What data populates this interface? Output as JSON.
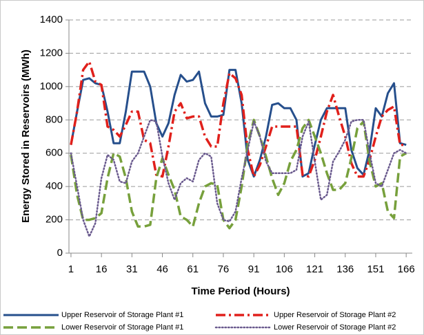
{
  "chart_data": {
    "type": "line",
    "x_label": "Time Period (Hours)",
    "y_label": "Energy Stored in Reservoirs (MWh)",
    "x": [
      1,
      4,
      7,
      10,
      13,
      16,
      19,
      22,
      25,
      28,
      31,
      34,
      37,
      40,
      43,
      46,
      49,
      52,
      55,
      58,
      61,
      64,
      67,
      70,
      73,
      76,
      79,
      82,
      85,
      88,
      91,
      94,
      97,
      100,
      103,
      106,
      109,
      112,
      115,
      118,
      121,
      124,
      127,
      130,
      133,
      136,
      139,
      142,
      145,
      148,
      151,
      154,
      157,
      160,
      163,
      166
    ],
    "series": [
      {
        "name": "Upper Reservoir of Storage Plant #1",
        "color": "#264f8c",
        "values": [
          650,
          850,
          1040,
          1050,
          1020,
          1010,
          850,
          660,
          660,
          850,
          1090,
          1090,
          1090,
          1000,
          780,
          700,
          780,
          950,
          1070,
          1030,
          1040,
          1090,
          900,
          820,
          820,
          830,
          1100,
          1100,
          900,
          560,
          460,
          560,
          700,
          890,
          900,
          870,
          870,
          800,
          460,
          480,
          650,
          800,
          870,
          870,
          870,
          870,
          620,
          510,
          470,
          620,
          870,
          820,
          960,
          1020,
          660,
          650
        ]
      },
      {
        "name": "Upper Reservoir of Storage Plant #2",
        "color": "#e0201b",
        "values": [
          650,
          850,
          1100,
          1150,
          1030,
          1010,
          760,
          740,
          700,
          770,
          850,
          850,
          680,
          660,
          470,
          460,
          640,
          850,
          900,
          810,
          820,
          820,
          700,
          640,
          640,
          900,
          1080,
          1050,
          950,
          620,
          460,
          530,
          640,
          760,
          760,
          760,
          760,
          760,
          470,
          460,
          560,
          700,
          850,
          950,
          820,
          700,
          540,
          460,
          460,
          560,
          700,
          820,
          860,
          880,
          650,
          650
        ]
      },
      {
        "name": "Lower Reservoir of Storage Plant #1",
        "color": "#77a03c",
        "values": [
          590,
          350,
          200,
          200,
          210,
          240,
          450,
          600,
          580,
          450,
          250,
          160,
          160,
          170,
          450,
          570,
          470,
          380,
          220,
          200,
          160,
          300,
          400,
          420,
          410,
          200,
          150,
          200,
          400,
          650,
          800,
          700,
          580,
          450,
          350,
          420,
          550,
          620,
          750,
          800,
          700,
          600,
          480,
          380,
          380,
          420,
          570,
          750,
          790,
          550,
          400,
          420,
          250,
          210,
          580,
          600
        ]
      },
      {
        "name": "Lower Reservoir of Storage Plant #2",
        "color": "#6a5a8e",
        "values": [
          600,
          400,
          200,
          100,
          180,
          450,
          590,
          560,
          430,
          420,
          550,
          600,
          700,
          800,
          790,
          580,
          420,
          320,
          420,
          450,
          430,
          560,
          600,
          580,
          300,
          200,
          190,
          250,
          450,
          620,
          790,
          700,
          550,
          480,
          480,
          480,
          480,
          500,
          700,
          790,
          550,
          320,
          350,
          550,
          610,
          680,
          790,
          800,
          800,
          600,
          420,
          400,
          500,
          600,
          620,
          600
        ]
      }
    ],
    "xlim": [
      0,
      169
    ],
    "xticks": [
      1,
      16,
      31,
      46,
      61,
      76,
      91,
      106,
      121,
      136,
      151,
      166
    ],
    "ylim": [
      0,
      1400
    ],
    "yticks": [
      0,
      200,
      400,
      600,
      800,
      1000,
      1200,
      1400
    ],
    "grid": true
  }
}
